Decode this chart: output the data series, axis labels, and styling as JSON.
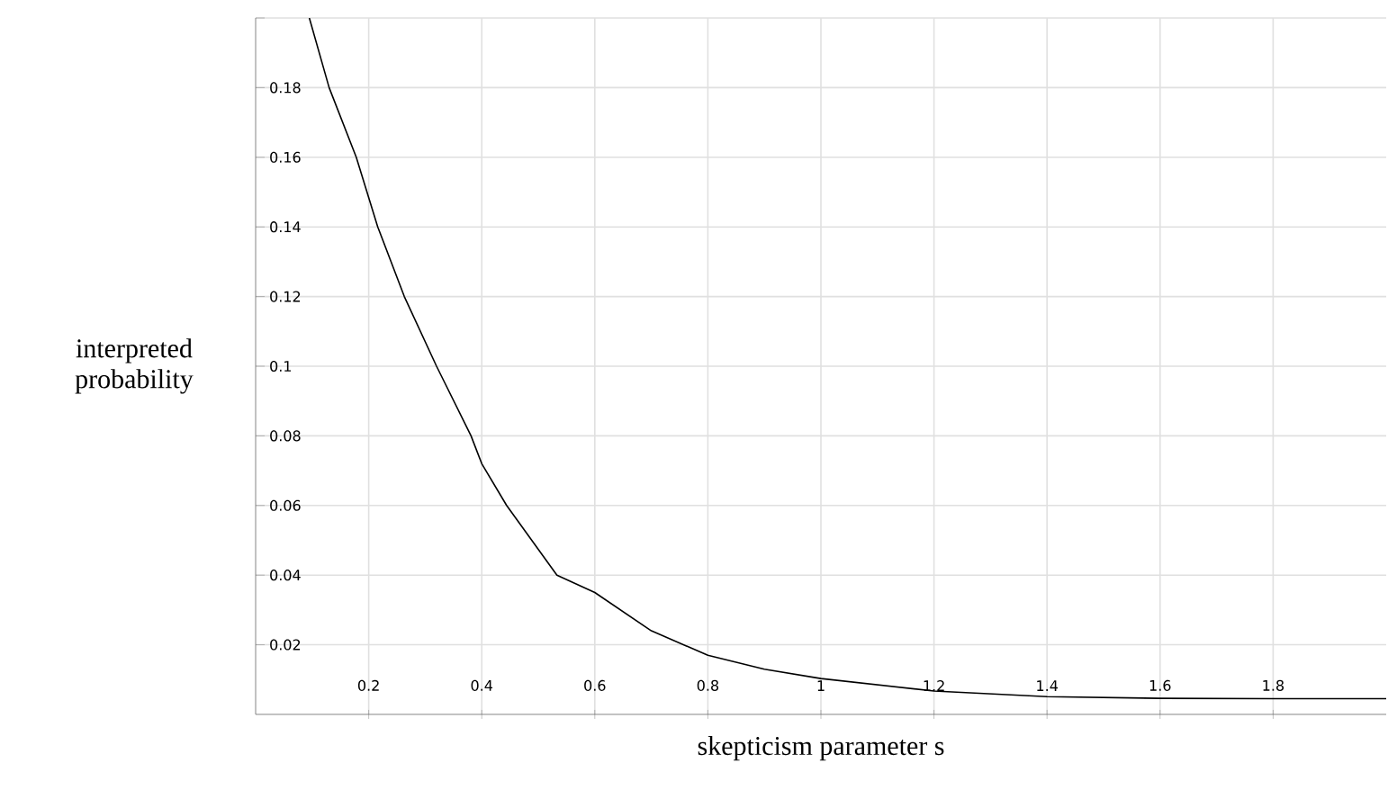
{
  "chart_data": {
    "type": "line",
    "xlabel": "skepticism parameter s",
    "ylabel": "interpreted probability",
    "x": [
      0.095,
      0.13,
      0.178,
      0.216,
      0.263,
      0.32,
      0.381,
      0.4,
      0.444,
      0.533,
      0.6,
      0.7,
      0.8,
      0.9,
      1.0,
      1.2,
      1.4,
      1.6,
      1.8,
      2.0
    ],
    "series": [
      {
        "color": "#000000",
        "values": [
          0.2,
          0.18,
          0.16,
          0.14,
          0.12,
          0.1,
          0.08,
          0.072,
          0.06,
          0.04,
          0.035,
          0.024,
          0.017,
          0.013,
          0.0103,
          0.0067,
          0.0051,
          0.0046,
          0.0045,
          0.0045
        ]
      }
    ],
    "xlim": [
      0,
      2
    ],
    "ylim": [
      0,
      0.2
    ],
    "xticks": [
      0.2,
      0.4,
      0.6,
      0.8,
      1,
      1.2,
      1.4,
      1.6,
      1.8
    ],
    "yticks": [
      0.02,
      0.04,
      0.06,
      0.08,
      0.1,
      0.12,
      0.14,
      0.16,
      0.18,
      {
        "value": 0.2,
        "label": null
      }
    ],
    "grid": true,
    "marker": "none",
    "line_style": "solid"
  }
}
